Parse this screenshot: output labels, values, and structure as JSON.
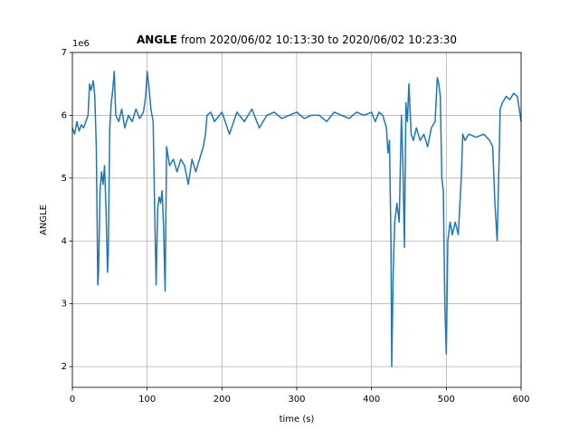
{
  "chart_data": {
    "type": "line",
    "title": [
      "ANGLE",
      "from 2020/06/02 10:13:30 to 2020/06/02 10:23:30"
    ],
    "xlabel": "time (s)",
    "ylabel": "ANGLE",
    "y_offset_label": "1e6",
    "color": "#1f77b4",
    "grid": true,
    "xlim": [
      0,
      600
    ],
    "xticks": [
      0,
      100,
      200,
      300,
      400,
      500,
      600
    ],
    "ylim": [
      1.67,
      7
    ],
    "yticks": [
      2,
      3,
      4,
      5,
      6,
      7
    ],
    "x": [
      0,
      3,
      6,
      9,
      12,
      15,
      18,
      21,
      23,
      25,
      28,
      30,
      32,
      34,
      35,
      37,
      39,
      41,
      43,
      45,
      47,
      48,
      50,
      52,
      54,
      56,
      58,
      62,
      66,
      70,
      75,
      80,
      85,
      90,
      95,
      98,
      100,
      102,
      105,
      108,
      110,
      112,
      114,
      116,
      118,
      120,
      122,
      124,
      126,
      130,
      135,
      140,
      145,
      150,
      155,
      160,
      165,
      170,
      175,
      178,
      180,
      185,
      190,
      200,
      210,
      220,
      230,
      240,
      250,
      260,
      270,
      280,
      290,
      300,
      310,
      320,
      330,
      340,
      350,
      360,
      370,
      380,
      390,
      400,
      405,
      410,
      415,
      420,
      422,
      424,
      426,
      427,
      429,
      431,
      434,
      437,
      440,
      442,
      444,
      446,
      448,
      450,
      453,
      456,
      460,
      465,
      470,
      475,
      480,
      485,
      488,
      490,
      492,
      494,
      496,
      498,
      500,
      502,
      505,
      508,
      512,
      516,
      520,
      522,
      525,
      530,
      540,
      550,
      558,
      562,
      565,
      568,
      570,
      572,
      575,
      580,
      585,
      590,
      595,
      600
    ],
    "values": [
      5.8,
      5.7,
      5.9,
      5.75,
      5.85,
      5.8,
      5.9,
      6.0,
      6.5,
      6.4,
      6.55,
      6.3,
      5.5,
      3.3,
      3.5,
      4.8,
      5.1,
      4.9,
      5.2,
      4.5,
      3.5,
      3.8,
      5.8,
      6.2,
      6.4,
      6.7,
      6.0,
      5.9,
      6.1,
      5.8,
      6.0,
      5.9,
      6.1,
      5.95,
      6.05,
      6.3,
      6.7,
      6.5,
      6.1,
      5.9,
      4.5,
      3.3,
      4.5,
      4.7,
      4.6,
      4.8,
      4.2,
      3.2,
      5.5,
      5.2,
      5.3,
      5.1,
      5.3,
      5.2,
      4.9,
      5.3,
      5.1,
      5.3,
      5.5,
      5.7,
      6.0,
      6.05,
      5.9,
      6.05,
      5.7,
      6.05,
      5.9,
      6.1,
      5.8,
      6.0,
      6.05,
      5.95,
      6.0,
      6.05,
      5.95,
      6.0,
      6.0,
      5.9,
      6.05,
      6.0,
      5.95,
      6.05,
      6.0,
      6.05,
      5.9,
      6.05,
      6.0,
      5.8,
      5.4,
      5.6,
      4.0,
      2.0,
      3.5,
      4.3,
      4.6,
      4.3,
      6.0,
      5.2,
      3.9,
      6.2,
      5.9,
      6.5,
      5.7,
      5.6,
      5.8,
      5.6,
      5.7,
      5.5,
      5.8,
      5.9,
      6.6,
      6.5,
      6.3,
      5.0,
      4.8,
      3.0,
      2.2,
      4.0,
      4.3,
      4.1,
      4.3,
      4.1,
      5.0,
      5.7,
      5.6,
      5.7,
      5.65,
      5.7,
      5.6,
      5.5,
      4.6,
      4.0,
      5.0,
      6.1,
      6.2,
      6.3,
      6.25,
      6.35,
      6.3,
      5.9
    ]
  }
}
